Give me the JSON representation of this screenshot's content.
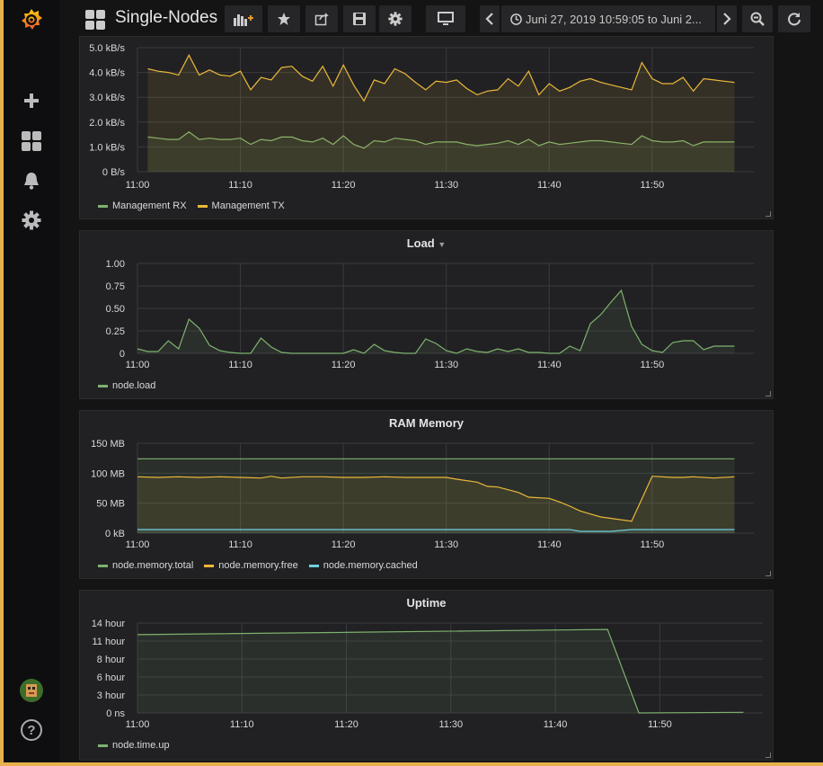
{
  "app": {
    "dashboard_title": "Single-Nodes",
    "time_range": "Juni 27, 2019 10:59:05 to Juni 2...",
    "colors": {
      "accent": "#e8b04a",
      "green": "#7eb26d",
      "yellow": "#eab839",
      "cyan": "#6ed0e0"
    }
  },
  "sidebar": {
    "icons": [
      "grafana-logo-icon",
      "plus-icon",
      "dashboards-icon",
      "bell-icon",
      "gear-icon",
      "avatar",
      "help-icon"
    ],
    "help_label": "?"
  },
  "toolbar": {
    "icons": [
      "add-panel-icon",
      "star-icon",
      "share-icon",
      "save-icon",
      "settings-icon",
      "tv-mode-icon",
      "chevron-left-icon",
      "clock-icon",
      "chevron-right-icon",
      "zoom-out-icon",
      "refresh-icon"
    ]
  },
  "panels": [
    {
      "id": "network",
      "title": "",
      "chart_data": {
        "type": "area",
        "x_ticks": [
          "11:00",
          "11:10",
          "11:20",
          "11:30",
          "11:40",
          "11:50"
        ],
        "y_ticks": [
          "0 B/s",
          "1.0 kB/s",
          "2.0 kB/s",
          "3.0 kB/s",
          "4.0 kB/s",
          "5.0 kB/s"
        ],
        "ylim": [
          0,
          5
        ],
        "x_range": [
          0,
          59
        ],
        "series": [
          {
            "name": "Management RX",
            "color": "#7eb26d",
            "x": [
              1,
              2,
              3,
              4,
              5,
              6,
              7,
              8,
              9,
              10,
              11,
              12,
              13,
              14,
              15,
              16,
              17,
              18,
              19,
              20,
              21,
              22,
              23,
              24,
              25,
              26,
              27,
              28,
              29,
              30,
              31,
              32,
              33,
              34,
              35,
              36,
              37,
              38,
              39,
              40,
              41,
              42,
              43,
              44,
              45,
              46,
              47,
              48,
              49,
              50,
              51,
              52,
              53,
              54,
              55,
              56,
              57,
              58
            ],
            "values": [
              1.4,
              1.35,
              1.3,
              1.3,
              1.6,
              1.3,
              1.35,
              1.3,
              1.3,
              1.35,
              1.1,
              1.3,
              1.25,
              1.4,
              1.4,
              1.25,
              1.2,
              1.35,
              1.1,
              1.45,
              1.1,
              0.95,
              1.25,
              1.2,
              1.35,
              1.3,
              1.25,
              1.1,
              1.2,
              1.2,
              1.2,
              1.1,
              1.05,
              1.1,
              1.15,
              1.25,
              1.1,
              1.3,
              1.05,
              1.2,
              1.1,
              1.15,
              1.2,
              1.25,
              1.25,
              1.2,
              1.15,
              1.1,
              1.45,
              1.25,
              1.2,
              1.2,
              1.25,
              1.05,
              1.2,
              1.2,
              1.2,
              1.2
            ]
          },
          {
            "name": "Management TX",
            "color": "#eab839",
            "x": [
              1,
              2,
              3,
              4,
              5,
              6,
              7,
              8,
              9,
              10,
              11,
              12,
              13,
              14,
              15,
              16,
              17,
              18,
              19,
              20,
              21,
              22,
              23,
              24,
              25,
              26,
              27,
              28,
              29,
              30,
              31,
              32,
              33,
              34,
              35,
              36,
              37,
              38,
              39,
              40,
              41,
              42,
              43,
              44,
              45,
              46,
              47,
              48,
              49,
              50,
              51,
              52,
              53,
              54,
              55,
              56,
              57,
              58
            ],
            "values": [
              4.15,
              4.05,
              4.0,
              3.9,
              4.7,
              3.9,
              4.1,
              3.9,
              3.85,
              4.05,
              3.3,
              3.8,
              3.7,
              4.2,
              4.25,
              3.85,
              3.65,
              4.25,
              3.45,
              4.3,
              3.5,
              2.85,
              3.7,
              3.55,
              4.15,
              3.95,
              3.6,
              3.3,
              3.65,
              3.6,
              3.7,
              3.35,
              3.1,
              3.25,
              3.3,
              3.75,
              3.45,
              4.05,
              3.1,
              3.55,
              3.25,
              3.4,
              3.65,
              3.75,
              3.6,
              3.5,
              3.4,
              3.3,
              4.4,
              3.75,
              3.55,
              3.55,
              3.8,
              3.25,
              3.75,
              3.7,
              3.65,
              3.6
            ]
          }
        ]
      }
    },
    {
      "id": "load",
      "title": "Load",
      "chart_data": {
        "type": "area",
        "x_ticks": [
          "11:00",
          "11:10",
          "11:20",
          "11:30",
          "11:40",
          "11:50"
        ],
        "y_ticks": [
          "0",
          "0.25",
          "0.50",
          "0.75",
          "1.00"
        ],
        "ylim": [
          0,
          1
        ],
        "x_range": [
          0,
          59
        ],
        "series": [
          {
            "name": "node.load",
            "color": "#7eb26d",
            "x": [
              0,
              1,
              2,
              3,
              4,
              5,
              6,
              7,
              8,
              9,
              10,
              11,
              12,
              13,
              14,
              15,
              16,
              17,
              18,
              19,
              20,
              21,
              22,
              23,
              24,
              25,
              26,
              27,
              28,
              29,
              30,
              31,
              32,
              33,
              34,
              35,
              36,
              37,
              38,
              39,
              40,
              41,
              42,
              43,
              44,
              45,
              46,
              47,
              48,
              49,
              50,
              51,
              52,
              53,
              54,
              55,
              56,
              57,
              58
            ],
            "values": [
              0.05,
              0.02,
              0.02,
              0.14,
              0.05,
              0.38,
              0.28,
              0.09,
              0.03,
              0.01,
              0.0,
              0.0,
              0.17,
              0.07,
              0.01,
              0.0,
              0.0,
              0.0,
              0.0,
              0.0,
              0.0,
              0.04,
              0.0,
              0.1,
              0.03,
              0.01,
              0.0,
              0.0,
              0.16,
              0.11,
              0.03,
              0.0,
              0.05,
              0.02,
              0.01,
              0.05,
              0.02,
              0.05,
              0.01,
              0.01,
              0.0,
              0.0,
              0.08,
              0.03,
              0.33,
              0.43,
              0.57,
              0.7,
              0.3,
              0.1,
              0.03,
              0.01,
              0.12,
              0.14,
              0.14,
              0.04,
              0.08,
              0.08,
              0.08
            ]
          }
        ]
      }
    },
    {
      "id": "ram",
      "title": "RAM Memory",
      "chart_data": {
        "type": "area",
        "x_ticks": [
          "11:00",
          "11:10",
          "11:20",
          "11:30",
          "11:40",
          "11:50"
        ],
        "y_ticks": [
          "0 kB",
          "50 MB",
          "100 MB",
          "150 MB"
        ],
        "ylim": [
          0,
          150
        ],
        "x_range": [
          0,
          59
        ],
        "series": [
          {
            "name": "node.memory.total",
            "color": "#7eb26d",
            "x": [
              0,
              58
            ],
            "values": [
              124,
              124
            ]
          },
          {
            "name": "node.memory.free",
            "color": "#eab839",
            "x": [
              0,
              2,
              4,
              6,
              8,
              10,
              12,
              13,
              14,
              16,
              18,
              20,
              22,
              24,
              26,
              28,
              30,
              31,
              33,
              34,
              35,
              37,
              38,
              40,
              41,
              42,
              43,
              44,
              45,
              48,
              50,
              52,
              53,
              54,
              56,
              58
            ],
            "values": [
              94,
              93,
              94,
              93,
              94,
              93,
              92,
              95,
              92,
              94,
              94,
              93,
              93,
              94,
              93,
              93,
              93,
              90,
              85,
              78,
              77,
              68,
              60,
              58,
              52,
              45,
              37,
              32,
              27,
              20,
              95,
              93,
              93,
              94,
              92,
              94
            ]
          },
          {
            "name": "node.memory.cached",
            "color": "#6ed0e0",
            "x": [
              0,
              10,
              20,
              30,
              40,
              42,
              43,
              44,
              46,
              48,
              50,
              58
            ],
            "values": [
              6,
              6,
              6,
              6,
              6,
              6,
              3,
              3,
              3,
              6,
              6,
              6
            ]
          }
        ]
      }
    },
    {
      "id": "uptime",
      "title": "Uptime",
      "chart_data": {
        "type": "area",
        "x_ticks": [
          "11:00",
          "11:10",
          "11:20",
          "11:30",
          "11:40",
          "11:50"
        ],
        "y_ticks": [
          "0 ns",
          "3 hour",
          "6 hour",
          "8 hour",
          "11 hour",
          "14 hour"
        ],
        "ylim": [
          0,
          14
        ],
        "x_range": [
          0,
          59
        ],
        "series": [
          {
            "name": "node.time.up",
            "color": "#7eb26d",
            "x": [
              0,
              45,
              48,
              58
            ],
            "values": [
              12.2,
              13.0,
              0.0,
              0.1
            ]
          }
        ]
      }
    }
  ]
}
